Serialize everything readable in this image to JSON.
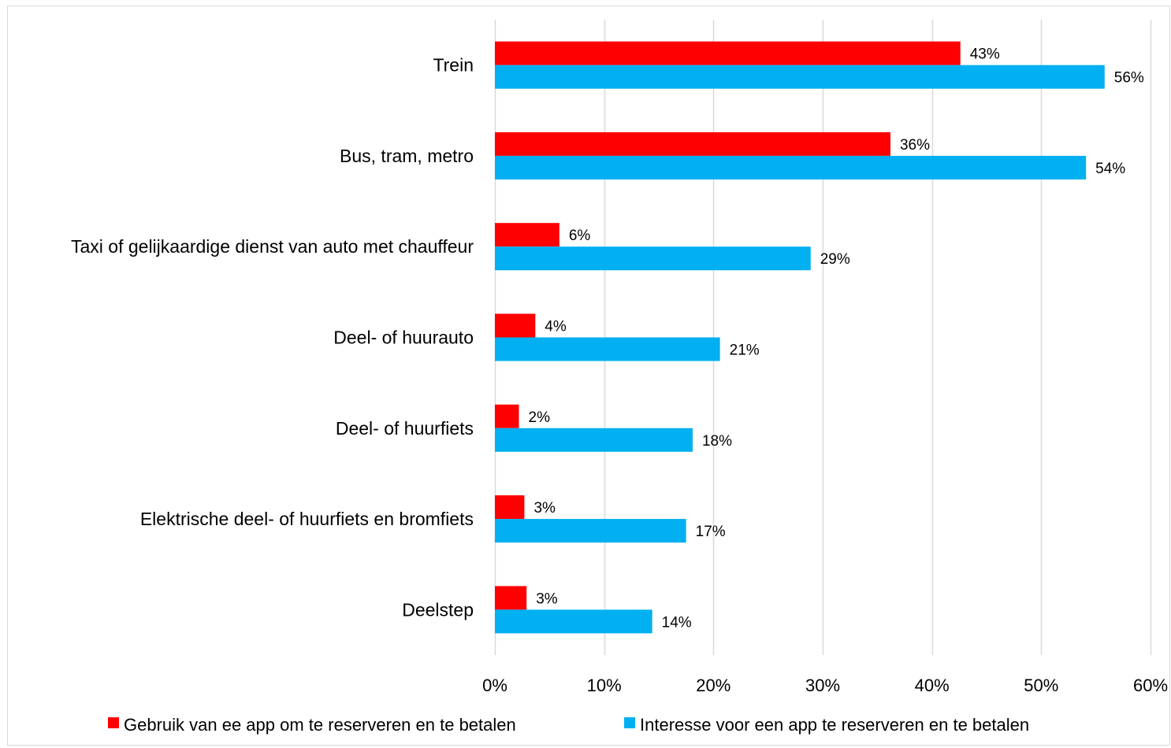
{
  "chart_data": {
    "type": "bar",
    "orientation": "horizontal",
    "title": "",
    "categories": [
      "Trein",
      "Bus, tram, metro",
      "Taxi of gelijkaardige dienst van auto met chauffeur",
      "Deel- of huurauto",
      "Deel- of huurfiets",
      "Elektrische deel- of huurfiets en bromfiets",
      "Deelstep"
    ],
    "series": [
      {
        "name": "Gebruik van ee app om te reserveren en te betalen",
        "color": "#ff0000",
        "values": [
          43,
          36,
          6,
          4,
          2,
          3,
          3
        ],
        "labels": [
          "43%",
          "36%",
          "6%",
          "4%",
          "2%",
          "3%",
          "3%"
        ],
        "display_values": [
          42.6,
          36.2,
          5.9,
          3.7,
          2.2,
          2.7,
          2.9
        ]
      },
      {
        "name": "Interesse voor een app te reserveren en te betalen",
        "color": "#00b0f0",
        "values": [
          56,
          54,
          29,
          21,
          18,
          17,
          14
        ],
        "labels": [
          "56%",
          "54%",
          "29%",
          "21%",
          "18%",
          "17%",
          "14%"
        ],
        "display_values": [
          55.8,
          54.1,
          28.9,
          20.6,
          18.1,
          17.5,
          14.4
        ]
      }
    ],
    "xlim": [
      0,
      60
    ],
    "xticks": [
      "0%",
      "10%",
      "20%",
      "30%",
      "40%",
      "50%",
      "60%"
    ],
    "grid": true,
    "legend_position": "bottom"
  }
}
